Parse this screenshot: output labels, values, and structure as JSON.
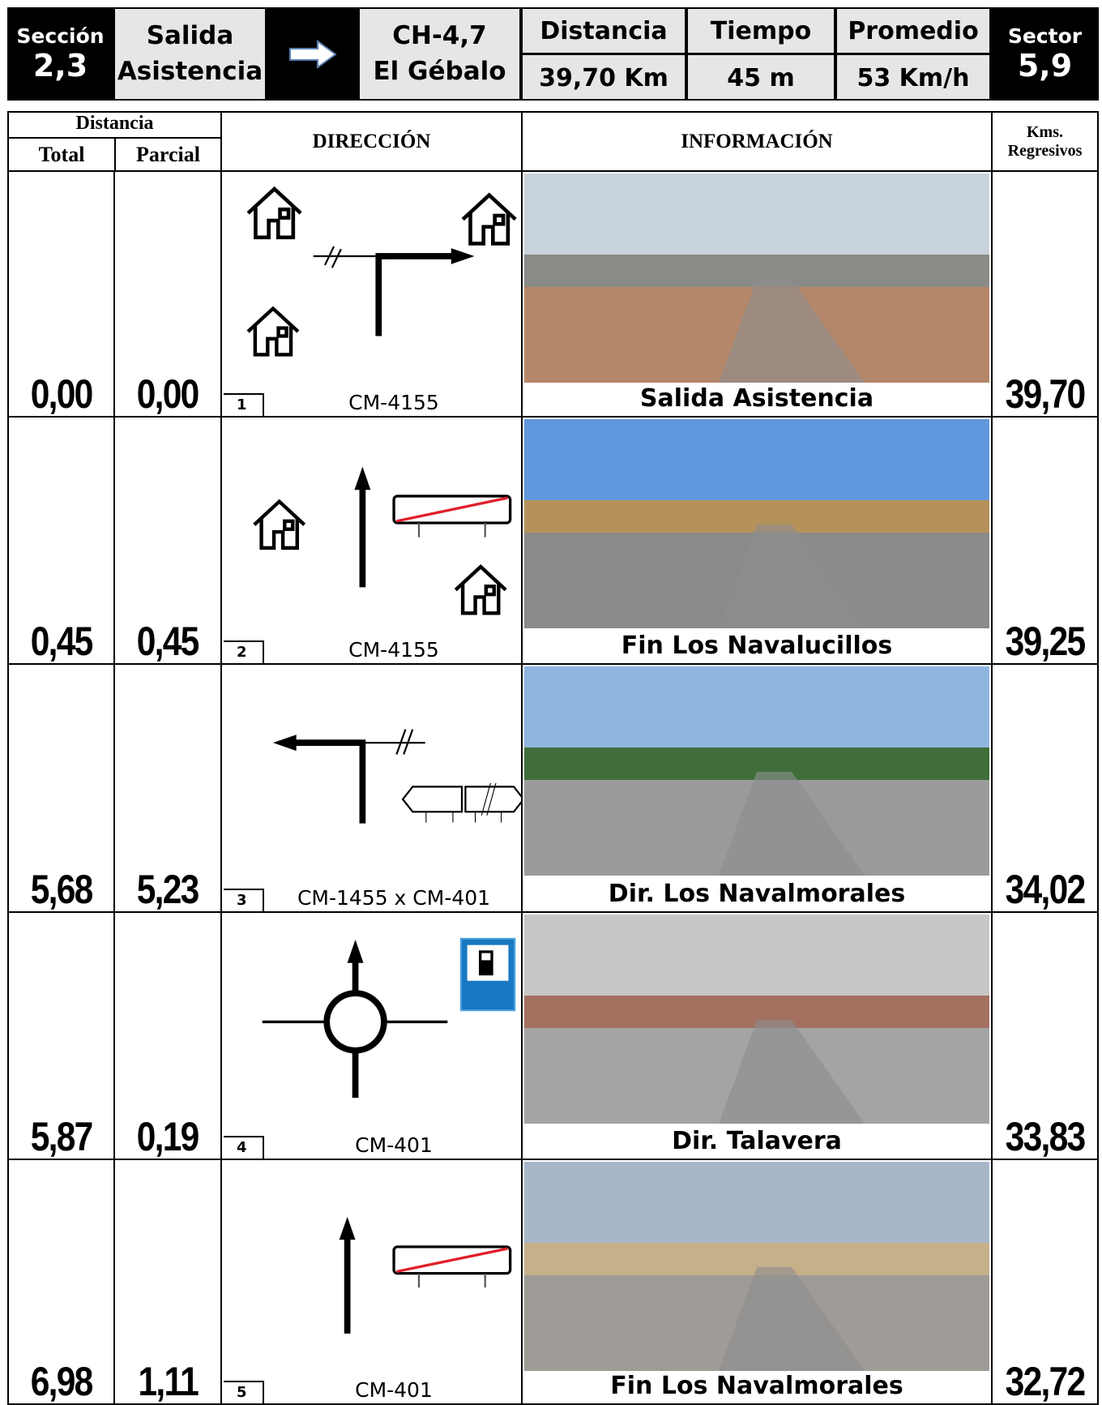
{
  "header": {
    "seccion_label": "Sección",
    "seccion": "2,3",
    "from": "Salida Asistencia",
    "to_code": "CH-4,7",
    "to_name": "El Gébalo",
    "distancia_label": "Distancia",
    "distancia": "39,70 Km",
    "tiempo_label": "Tiempo",
    "tiempo": "45 m",
    "promedio_label": "Promedio",
    "promedio": "53 Km/h",
    "sector_label": "Sector",
    "sector": "5,9"
  },
  "table": {
    "headers": {
      "distancia": "Distancia",
      "total": "Total",
      "parcial": "Parcial",
      "direccion": "DIRECCIÓN",
      "informacion": "INFORMACIÓN",
      "kms": "Kms. Regresivos"
    },
    "rows": [
      {
        "total": "0,00",
        "parcial": "0,00",
        "number": "1",
        "road": "CM-4155",
        "info": "Salida Asistencia",
        "remaining": "39,70"
      },
      {
        "total": "0,45",
        "parcial": "0,45",
        "number": "2",
        "road": "CM-4155",
        "info": "Fin Los Navalucillos",
        "remaining": "39,25"
      },
      {
        "total": "5,68",
        "parcial": "5,23",
        "number": "3",
        "road": "CM-1455 x CM-401",
        "info": "Dir. Los Navalmorales",
        "remaining": "34,02"
      },
      {
        "total": "5,87",
        "parcial": "0,19",
        "number": "4",
        "road": "CM-401",
        "info": "Dir. Talavera",
        "remaining": "33,83"
      },
      {
        "total": "6,98",
        "parcial": "1,11",
        "number": "5",
        "road": "CM-401",
        "info": "Fin Los Navalmorales",
        "remaining": "32,72"
      }
    ]
  }
}
